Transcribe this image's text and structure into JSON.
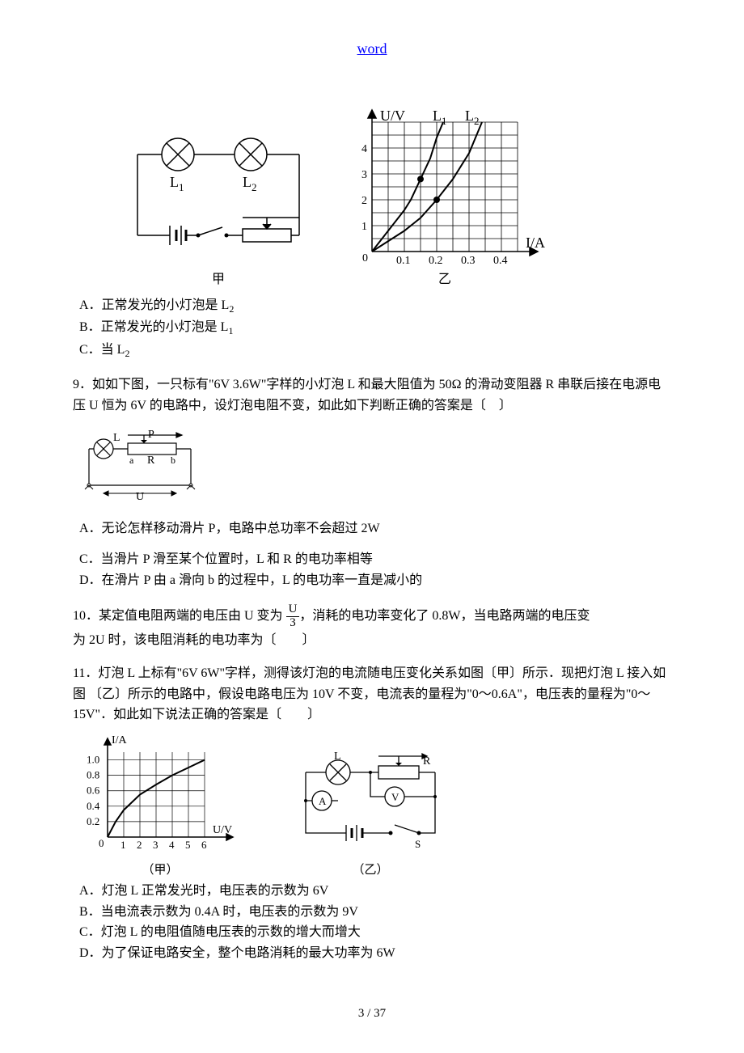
{
  "header": {
    "link_text": "word"
  },
  "figure1": {
    "circuit": {
      "type": "circuit-diagram",
      "bulb1_label": "L",
      "bulb1_sub": "1",
      "bulb2_label": "L",
      "bulb2_sub": "2",
      "caption": "甲",
      "line_color": "#000000",
      "line_width": 1.5
    },
    "chart": {
      "type": "line",
      "xlabel": "I/A",
      "ylabel": "U/V",
      "series1_label": "L",
      "series1_sub": "1",
      "series2_label": "L",
      "series2_sub": "2",
      "xlim": [
        0,
        0.45
      ],
      "ylim": [
        0,
        5
      ],
      "xticks": [
        "0.1",
        "0.2",
        "0.3",
        "0.4"
      ],
      "yticks": [
        "1",
        "2",
        "3",
        "4"
      ],
      "origin_label": "0",
      "caption": "乙",
      "background_color": "#ffffff",
      "grid_color": "#000000",
      "line_color": "#000000",
      "grid_cols": 9,
      "grid_rows": 10,
      "series_L1": [
        [
          0,
          0
        ],
        [
          0.05,
          0.8
        ],
        [
          0.1,
          1.6
        ],
        [
          0.12,
          2.0
        ],
        [
          0.15,
          2.8
        ],
        [
          0.18,
          3.6
        ],
        [
          0.2,
          4.4
        ],
        [
          0.22,
          5.0
        ]
      ],
      "series_L2": [
        [
          0,
          0
        ],
        [
          0.1,
          0.8
        ],
        [
          0.15,
          1.3
        ],
        [
          0.2,
          2.0
        ],
        [
          0.25,
          2.8
        ],
        [
          0.3,
          3.8
        ],
        [
          0.34,
          5.0
        ]
      ],
      "point_markers": [
        [
          0.15,
          2.8
        ],
        [
          0.2,
          2.0
        ]
      ],
      "marker_radius": 4,
      "label_fontsize": 16
    }
  },
  "q8_options": {
    "a": "A．正常发光的小灯泡是 L",
    "a_sub": "2",
    "b": "B．正常发光的小灯泡是 L",
    "b_sub": "1",
    "c": "C．当 L",
    "c_sub": "2"
  },
  "q9": {
    "stem": "9．如如下图，一只标有\"6V   3.6W\"字样的小灯泡 L 和最大阻值为 50Ω 的滑动变阻器 R 串联后接在电源电压 U 恒为 6V 的电路中，设灯泡电阻不变，如此如下判断正确的答案是〔　〕",
    "circuit": {
      "type": "circuit-diagram",
      "bulb_label": "L",
      "slider_label": "P",
      "r_a": "a",
      "r_b": "b",
      "r_label": "R",
      "u_label": "U",
      "line_color": "#000000"
    },
    "a": "A．无论怎样移动滑片 P，电路中总功率不会超过 2W",
    "c": "C．当滑片 P 滑至某个位置时，L 和 R 的电功率相等",
    "d": "D．在滑片 P 由 a 滑向 b 的过程中，L 的电功率一直是减小的"
  },
  "q10": {
    "pre": "10．某定值电阻两端的电压由 U 变为",
    "frac_num": "U",
    "frac_den": "3",
    "post1": "，消耗的电功率变化了 0.8W，当电路两端的电压变",
    "post2": "为 2U 时，该电阻消耗的电功率为〔　　〕"
  },
  "q11": {
    "stem": "11．灯泡 L 上标有\"6V 6W\"字样，测得该灯泡的电流随电压变化关系如图〔甲〕所示．现把灯泡 L 接入如图 〔乙〕所示的电路中，假设电路电压为 10V 不变，电流表的量程为\"0～0.6A\"，电压表的量程为\"0～15V\"．如此如下说法正确的答案是〔　　〕",
    "chart": {
      "type": "line",
      "xlabel": "U/V",
      "ylabel": "I/A",
      "xlim": [
        0,
        6.5
      ],
      "ylim": [
        0,
        1.1
      ],
      "xticks": [
        "1",
        "2",
        "3",
        "4",
        "5",
        "6"
      ],
      "yticks": [
        "0.2",
        "0.4",
        "0.6",
        "0.8",
        "1.0"
      ],
      "origin_label": "0",
      "caption": "（甲）",
      "grid_cols": 6,
      "grid_rows": 5,
      "grid_color": "#000000",
      "line_color": "#000000",
      "curve": [
        [
          0,
          0
        ],
        [
          0.5,
          0.2
        ],
        [
          1.0,
          0.35
        ],
        [
          2.0,
          0.55
        ],
        [
          3.0,
          0.68
        ],
        [
          4.0,
          0.8
        ],
        [
          5.0,
          0.9
        ],
        [
          6.0,
          1.0
        ]
      ]
    },
    "circuit": {
      "type": "circuit-diagram",
      "bulb_label": "L",
      "r_label": "R",
      "ammeter_label": "A",
      "voltmeter_label": "V",
      "switch_label": "S",
      "caption": "（乙）",
      "line_color": "#000000"
    },
    "a": "A．灯泡 L 正常发光时，电压表的示数为 6V",
    "b": "B．当电流表示数为 0.4A 时，电压表的示数为 9V",
    "c": "C．灯泡 L 的电阻值随电压表的示数的增大而增大",
    "d": "D．为了保证电路安全，整个电路消耗的最大功率为 6W"
  },
  "footer": {
    "page": "3 / 37"
  }
}
